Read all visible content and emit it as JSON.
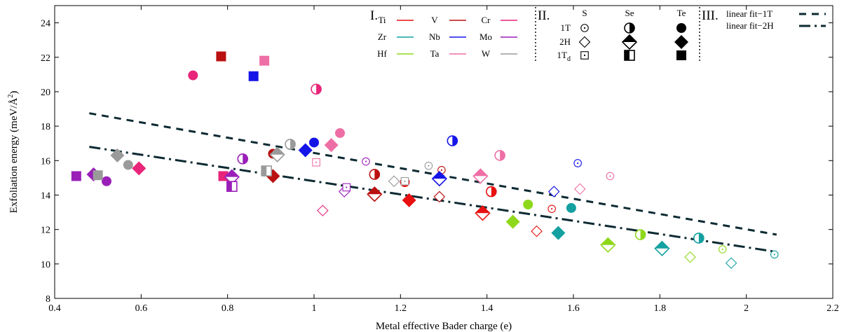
{
  "chart_data": {
    "type": "scatter",
    "xlabel": "Metal effective Bader charge (e)",
    "ylabel_main": "Exfoliation energy (meV/Å",
    "ylabel_sup": "2",
    "ylabel_tail": ")",
    "xlim": [
      0.4,
      2.2
    ],
    "ylim": [
      8,
      25
    ],
    "x_ticks": [
      "0.4",
      "0.6",
      "0.8",
      "1",
      "1.2",
      "1.4",
      "1.6",
      "1.8",
      "2",
      "2.2"
    ],
    "y_ticks": [
      "8",
      "10",
      "12",
      "14",
      "16",
      "18",
      "20",
      "22",
      "24"
    ],
    "grid": false,
    "legend": {
      "group1_label": "I.",
      "metals": [
        {
          "name": "Ti",
          "color": "#e81010"
        },
        {
          "name": "V",
          "color": "#bb1010"
        },
        {
          "name": "Cr",
          "color": "#e8257a"
        },
        {
          "name": "Zr",
          "color": "#14a0a0"
        },
        {
          "name": "Nb",
          "color": "#1515e8"
        },
        {
          "name": "Mo",
          "color": "#9a1fb8"
        },
        {
          "name": "Hf",
          "color": "#8ed81c"
        },
        {
          "name": "Ta",
          "color": "#ee6fa5"
        },
        {
          "name": "W",
          "color": "#9a9a9a"
        }
      ],
      "group2_label": "II.",
      "chalcogens": [
        "S",
        "Se",
        "Te"
      ],
      "phases": [
        {
          "name": "1T",
          "sub": ""
        },
        {
          "name": "2H",
          "sub": ""
        },
        {
          "name": "1T",
          "sub": "d"
        }
      ],
      "group3_label": "III.",
      "fits": [
        {
          "name": "linear fit−1T",
          "style": "dashed"
        },
        {
          "name": "linear fit−2H",
          "style": "dashdot"
        }
      ]
    },
    "fits": [
      {
        "name": "linear fit−1T",
        "x": [
          0.48,
          2.07
        ],
        "y": [
          18.75,
          11.7
        ]
      },
      {
        "name": "linear fit−2H",
        "x": [
          0.48,
          2.07
        ],
        "y": [
          16.8,
          10.7
        ]
      }
    ],
    "points": [
      {
        "metal": "Ti",
        "phase": "1T",
        "chal": "S",
        "x": 1.55,
        "y": 13.2
      },
      {
        "metal": "Ti",
        "phase": "2H",
        "chal": "S",
        "x": 1.515,
        "y": 11.9
      },
      {
        "metal": "Ti",
        "phase": "1T",
        "chal": "Se",
        "x": 1.41,
        "y": 14.2
      },
      {
        "metal": "Ti",
        "phase": "2H",
        "chal": "Se",
        "x": 1.39,
        "y": 12.95
      },
      {
        "metal": "Ti",
        "phase": "1T",
        "chal": "Te",
        "x": 1.21,
        "y": 14.75
      },
      {
        "metal": "Ti",
        "phase": "2H",
        "chal": "Te",
        "x": 1.22,
        "y": 13.7
      },
      {
        "metal": "V",
        "phase": "1T",
        "chal": "S",
        "x": 1.295,
        "y": 15.45
      },
      {
        "metal": "V",
        "phase": "2H",
        "chal": "S",
        "x": 1.29,
        "y": 13.9
      },
      {
        "metal": "V",
        "phase": "1T",
        "chal": "Se",
        "x": 1.14,
        "y": 15.2
      },
      {
        "metal": "V",
        "phase": "2H",
        "chal": "Se",
        "x": 1.14,
        "y": 14.05
      },
      {
        "metal": "V",
        "phase": "1T",
        "chal": "Te",
        "x": 0.905,
        "y": 16.4
      },
      {
        "metal": "V",
        "phase": "2H",
        "chal": "Te",
        "x": 0.905,
        "y": 15.1
      },
      {
        "metal": "V",
        "phase": "1Td",
        "chal": "Te",
        "x": 0.785,
        "y": 22.05
      },
      {
        "metal": "Cr",
        "phase": "1T",
        "chal": "Se",
        "x": 1.005,
        "y": 20.15
      },
      {
        "metal": "Cr",
        "phase": "1T",
        "chal": "Te",
        "x": 0.72,
        "y": 20.95
      },
      {
        "metal": "Cr",
        "phase": "1Td",
        "chal": "Te",
        "x": 0.79,
        "y": 15.1
      },
      {
        "metal": "Zr",
        "phase": "1T",
        "chal": "S",
        "x": 2.065,
        "y": 10.55
      },
      {
        "metal": "Zr",
        "phase": "2H",
        "chal": "S",
        "x": 1.965,
        "y": 10.05
      },
      {
        "metal": "Zr",
        "phase": "1T",
        "chal": "Se",
        "x": 1.89,
        "y": 11.5
      },
      {
        "metal": "Zr",
        "phase": "2H",
        "chal": "Se",
        "x": 1.805,
        "y": 10.9
      },
      {
        "metal": "Zr",
        "phase": "1T",
        "chal": "Te",
        "x": 1.595,
        "y": 13.25
      },
      {
        "metal": "Zr",
        "phase": "2H",
        "chal": "Te",
        "x": 1.565,
        "y": 11.8
      },
      {
        "metal": "Nb",
        "phase": "1T",
        "chal": "S",
        "x": 1.61,
        "y": 15.85
      },
      {
        "metal": "Nb",
        "phase": "2H",
        "chal": "S",
        "x": 1.555,
        "y": 14.2
      },
      {
        "metal": "Nb",
        "phase": "1T",
        "chal": "Se",
        "x": 1.32,
        "y": 17.15
      },
      {
        "metal": "Nb",
        "phase": "2H",
        "chal": "Se",
        "x": 1.29,
        "y": 14.95
      },
      {
        "metal": "Nb",
        "phase": "1T",
        "chal": "Te",
        "x": 1.0,
        "y": 17.05
      },
      {
        "metal": "Nb",
        "phase": "2H",
        "chal": "Te",
        "x": 0.98,
        "y": 16.6
      },
      {
        "metal": "Nb",
        "phase": "1Td",
        "chal": "Te",
        "x": 0.86,
        "y": 20.9
      },
      {
        "metal": "Mo",
        "phase": "1T",
        "chal": "S",
        "x": 1.12,
        "y": 15.95
      },
      {
        "metal": "Mo",
        "phase": "2H",
        "chal": "S",
        "x": 1.07,
        "y": 14.2
      },
      {
        "metal": "Mo",
        "phase": "1Td",
        "chal": "S",
        "x": 1.075,
        "y": 14.45
      },
      {
        "metal": "Mo",
        "phase": "1T",
        "chal": "Se",
        "x": 0.835,
        "y": 16.1
      },
      {
        "metal": "Mo",
        "phase": "2H",
        "chal": "Se",
        "x": 0.81,
        "y": 15.05
      },
      {
        "metal": "Mo",
        "phase": "1Td",
        "chal": "Se",
        "x": 0.81,
        "y": 14.5
      },
      {
        "metal": "Mo",
        "phase": "1T",
        "chal": "Te",
        "x": 0.52,
        "y": 14.8
      },
      {
        "metal": "Mo",
        "phase": "2H",
        "chal": "Te",
        "x": 0.49,
        "y": 15.2
      },
      {
        "metal": "Mo",
        "phase": "1Td",
        "chal": "Te",
        "x": 0.45,
        "y": 15.1
      },
      {
        "metal": "Hf",
        "phase": "1T",
        "chal": "S",
        "x": 1.945,
        "y": 10.85
      },
      {
        "metal": "Hf",
        "phase": "2H",
        "chal": "S",
        "x": 1.87,
        "y": 10.4
      },
      {
        "metal": "Hf",
        "phase": "1T",
        "chal": "Se",
        "x": 1.755,
        "y": 11.7
      },
      {
        "metal": "Hf",
        "phase": "2H",
        "chal": "Se",
        "x": 1.68,
        "y": 11.1
      },
      {
        "metal": "Hf",
        "phase": "1T",
        "chal": "Te",
        "x": 1.495,
        "y": 13.45
      },
      {
        "metal": "Hf",
        "phase": "2H",
        "chal": "Te",
        "x": 1.46,
        "y": 12.45
      },
      {
        "metal": "Ta",
        "phase": "1T",
        "chal": "S",
        "x": 1.685,
        "y": 15.1
      },
      {
        "metal": "Ta",
        "phase": "2H",
        "chal": "S",
        "x": 1.615,
        "y": 14.35
      },
      {
        "metal": "Ta",
        "phase": "1T",
        "chal": "Se",
        "x": 1.43,
        "y": 16.3
      },
      {
        "metal": "Ta",
        "phase": "2H",
        "chal": "Se",
        "x": 1.385,
        "y": 15.1
      },
      {
        "metal": "Ta",
        "phase": "1T",
        "chal": "Te",
        "x": 1.06,
        "y": 17.6
      },
      {
        "metal": "Ta",
        "phase": "2H",
        "chal": "Te",
        "x": 1.04,
        "y": 16.9
      },
      {
        "metal": "Ta",
        "phase": "1Td",
        "chal": "Te",
        "x": 0.885,
        "y": 21.8
      },
      {
        "metal": "Ta",
        "phase": "1Td",
        "chal": "S",
        "x": 1.005,
        "y": 15.9
      },
      {
        "metal": "W",
        "phase": "1T",
        "chal": "S",
        "x": 1.265,
        "y": 15.7
      },
      {
        "metal": "W",
        "phase": "2H",
        "chal": "S",
        "x": 1.185,
        "y": 14.8
      },
      {
        "metal": "W",
        "phase": "1Td",
        "chal": "S",
        "x": 1.21,
        "y": 14.8
      },
      {
        "metal": "W",
        "phase": "1T",
        "chal": "Se",
        "x": 0.945,
        "y": 16.95
      },
      {
        "metal": "W",
        "phase": "2H",
        "chal": "Se",
        "x": 0.915,
        "y": 16.35
      },
      {
        "metal": "W",
        "phase": "1Td",
        "chal": "Se",
        "x": 0.89,
        "y": 15.4
      },
      {
        "metal": "W",
        "phase": "1T",
        "chal": "Te",
        "x": 0.57,
        "y": 15.75
      },
      {
        "metal": "W",
        "phase": "2H",
        "chal": "Te",
        "x": 0.545,
        "y": 16.3
      },
      {
        "metal": "W",
        "phase": "1Td",
        "chal": "Te",
        "x": 0.5,
        "y": 15.15
      },
      {
        "metal": "Cr",
        "phase": "2H",
        "chal": "Te",
        "x": 0.595,
        "y": 15.55
      },
      {
        "metal": "Cr",
        "phase": "1T",
        "chal": "Se",
        "x": 1.02,
        "y": 13.1,
        "override": "2H-S"
      }
    ]
  }
}
